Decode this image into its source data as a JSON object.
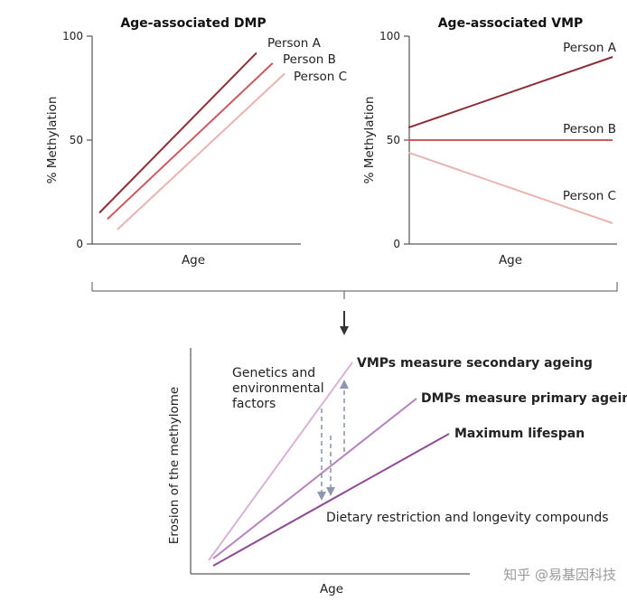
{
  "colors": {
    "person_a": "#8b2e35",
    "person_b": "#cc5a5e",
    "person_c": "#eab3b2",
    "vmp_line": "#d9b2d6",
    "dmp_line": "#b583bd",
    "max_line": "#8f4b93",
    "arrow": "#8d97ad",
    "axis": "#333333",
    "watermark": "#9a9a9a"
  },
  "chart_data": [
    {
      "type": "line",
      "title": "Age-associated DMP",
      "xlabel": "Age",
      "ylabel": "% Methylation",
      "yticks": [
        "0",
        "50",
        "100"
      ],
      "ylim": [
        0,
        100
      ],
      "xlim": [
        0,
        10
      ],
      "series": [
        {
          "name": "Person A",
          "key": "person_a",
          "x": [
            0,
            7.8
          ],
          "values": [
            15,
            92
          ]
        },
        {
          "name": "Person B",
          "key": "person_b",
          "x": [
            0.4,
            8.6
          ],
          "values": [
            12,
            87
          ]
        },
        {
          "name": "Person C",
          "key": "person_c",
          "x": [
            0.9,
            9.2
          ],
          "values": [
            7,
            82
          ]
        }
      ]
    },
    {
      "type": "line",
      "title": "Age-associated VMP",
      "xlabel": "Age",
      "ylabel": "% Methylation",
      "yticks": [
        "0",
        "50",
        "100"
      ],
      "ylim": [
        0,
        100
      ],
      "xlim": [
        0,
        10
      ],
      "series": [
        {
          "name": "Person A",
          "key": "person_a",
          "x": [
            0.5,
            9.8
          ],
          "values": [
            56,
            90
          ]
        },
        {
          "name": "Person B",
          "key": "person_b",
          "x": [
            0.5,
            9.8
          ],
          "values": [
            50,
            50
          ]
        },
        {
          "name": "Person C",
          "key": "person_c",
          "x": [
            0.5,
            9.8
          ],
          "values": [
            44,
            10
          ]
        }
      ]
    }
  ],
  "lower_diagram": {
    "ylabel": "Erosion of the methylome",
    "xlabel": "Age",
    "lines": {
      "vmp": "VMPs measure secondary ageing",
      "dmp": "DMPs measure primary ageing",
      "max": "Maximum lifespan"
    },
    "genetics_label": [
      "Genetics and",
      "environmental",
      "factors"
    ],
    "dietary_label": "Dietary restriction and longevity compounds"
  },
  "watermark": "知乎 @易基因科技"
}
